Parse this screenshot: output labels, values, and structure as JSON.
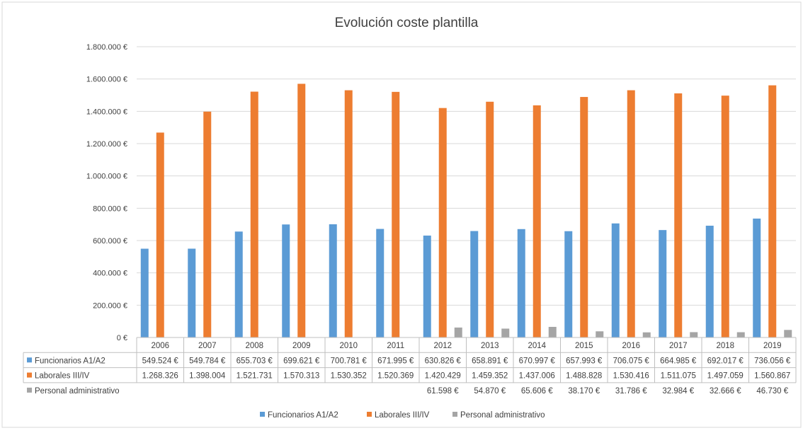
{
  "chart_data": {
    "type": "bar",
    "title": "Evolución coste plantilla",
    "categories": [
      "2006",
      "2007",
      "2008",
      "2009",
      "2010",
      "2011",
      "2012",
      "2013",
      "2014",
      "2015",
      "2016",
      "2017",
      "2018",
      "2019"
    ],
    "ylim": [
      0,
      1800000
    ],
    "yticks": [
      {
        "value": 0,
        "label": "0 €"
      },
      {
        "value": 200000,
        "label": "200.000 €"
      },
      {
        "value": 400000,
        "label": "400.000 €"
      },
      {
        "value": 600000,
        "label": "600.000 €"
      },
      {
        "value": 800000,
        "label": "800.000 €"
      },
      {
        "value": 1000000,
        "label": "1.000.000 €"
      },
      {
        "value": 1200000,
        "label": "1.200.000 €"
      },
      {
        "value": 1400000,
        "label": "1.400.000 €"
      },
      {
        "value": 1600000,
        "label": "1.600.000 €"
      },
      {
        "value": 1800000,
        "label": "1.800.000 €"
      }
    ],
    "grid": true,
    "legend_position": "bottom",
    "series": [
      {
        "name": "Funcionarios A1/A2",
        "color": "#5B9BD5",
        "values": [
          549524,
          549784,
          655703,
          699621,
          700781,
          671995,
          630826,
          658891,
          670997,
          657993,
          706075,
          664985,
          692017,
          736056
        ],
        "labels": [
          "549.524 €",
          "549.784 €",
          "655.703 €",
          "699.621 €",
          "700.781 €",
          "671.995 €",
          "630.826 €",
          "658.891 €",
          "670.997 €",
          "657.993 €",
          "706.075 €",
          "664.985 €",
          "692.017 €",
          "736.056 €"
        ]
      },
      {
        "name": "Laborales III/IV",
        "color": "#ED7D31",
        "values": [
          1268326,
          1398004,
          1521731,
          1570313,
          1530352,
          1520369,
          1420429,
          1459352,
          1437006,
          1488828,
          1530416,
          1511075,
          1497059,
          1560867
        ],
        "labels": [
          "1.268.326",
          "1.398.004",
          "1.521.731",
          "1.570.313",
          "1.530.352",
          "1.520.369",
          "1.420.429",
          "1.459.352",
          "1.437.006",
          "1.488.828",
          "1.530.416",
          "1.511.075",
          "1.497.059",
          "1.560.867"
        ]
      },
      {
        "name": "Personal administrativo",
        "color": "#A5A5A5",
        "values": [
          null,
          null,
          null,
          null,
          null,
          null,
          61598,
          54870,
          65606,
          38170,
          31786,
          32984,
          32666,
          46730
        ],
        "labels": [
          "",
          "",
          "",
          "",
          "",
          "",
          "61.598 €",
          "54.870 €",
          "65.606 €",
          "38.170 €",
          "31.786 €",
          "32.984 €",
          "32.666 €",
          "46.730 €"
        ]
      }
    ]
  }
}
